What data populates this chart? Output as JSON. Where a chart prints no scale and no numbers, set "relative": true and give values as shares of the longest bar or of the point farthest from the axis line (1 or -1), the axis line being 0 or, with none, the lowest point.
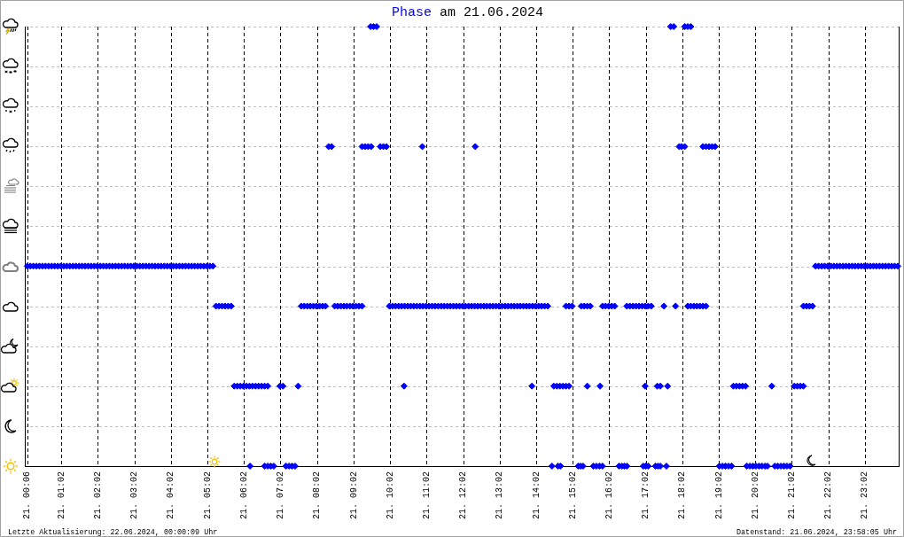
{
  "chart_data": {
    "type": "scatter",
    "title": "Phase am 21.06.2024",
    "color": "#0000ff",
    "marker": "diamond",
    "grid": true,
    "relative": true,
    "tick_labels": "x",
    "xlim": [
      "2024-06-21T00:02",
      "2024-06-21T23:59"
    ],
    "xticks": [
      {
        "value": "2024-06-21T00:06",
        "label": "21. 00:06"
      },
      {
        "value": "2024-06-21T01:02",
        "label": "21. 01:02"
      },
      {
        "value": "2024-06-21T02:02",
        "label": "21. 02:02"
      },
      {
        "value": "2024-06-21T03:02",
        "label": "21. 03:02"
      },
      {
        "value": "2024-06-21T04:02",
        "label": "21. 04:02"
      },
      {
        "value": "2024-06-21T05:02",
        "label": "21. 05:02"
      },
      {
        "value": "2024-06-21T06:02",
        "label": "21. 06:02"
      },
      {
        "value": "2024-06-21T07:02",
        "label": "21. 07:02"
      },
      {
        "value": "2024-06-21T08:02",
        "label": "21. 08:02"
      },
      {
        "value": "2024-06-21T09:02",
        "label": "21. 09:02"
      },
      {
        "value": "2024-06-21T10:02",
        "label": "21. 10:02"
      },
      {
        "value": "2024-06-21T11:02",
        "label": "21. 11:02"
      },
      {
        "value": "2024-06-21T12:02",
        "label": "21. 12:02"
      },
      {
        "value": "2024-06-21T13:02",
        "label": "21. 13:02"
      },
      {
        "value": "2024-06-21T14:02",
        "label": "21. 14:02"
      },
      {
        "value": "2024-06-21T15:02",
        "label": "21. 15:02"
      },
      {
        "value": "2024-06-21T16:02",
        "label": "21. 16:02"
      },
      {
        "value": "2024-06-21T17:02",
        "label": "21. 17:02"
      },
      {
        "value": "2024-06-21T18:02",
        "label": "21. 18:02"
      },
      {
        "value": "2024-06-21T19:02",
        "label": "21. 19:02"
      },
      {
        "value": "2024-06-21T20:02",
        "label": "21. 20:02"
      },
      {
        "value": "2024-06-21T21:02",
        "label": "21. 21:02"
      },
      {
        "value": "2024-06-21T22:02",
        "label": "21. 22:02"
      },
      {
        "value": "2024-06-21T23:02",
        "label": "21. 23:02"
      }
    ],
    "x": [
      "2024-06-21T00:06",
      "2024-06-21T00:11",
      "2024-06-21T00:16",
      "2024-06-21T00:21",
      "2024-06-21T00:26",
      "2024-06-21T00:31",
      "2024-06-21T00:36",
      "2024-06-21T00:41",
      "2024-06-21T00:46",
      "2024-06-21T00:51",
      "2024-06-21T00:56",
      "2024-06-21T01:01",
      "2024-06-21T01:06",
      "2024-06-21T01:11",
      "2024-06-21T01:16",
      "2024-06-21T01:21",
      "2024-06-21T01:26",
      "2024-06-21T01:31",
      "2024-06-21T01:36",
      "2024-06-21T01:41",
      "2024-06-21T01:46",
      "2024-06-21T01:51",
      "2024-06-21T01:56",
      "2024-06-21T02:01",
      "2024-06-21T02:06",
      "2024-06-21T02:11",
      "2024-06-21T02:16",
      "2024-06-21T02:21",
      "2024-06-21T02:26",
      "2024-06-21T02:31",
      "2024-06-21T02:36",
      "2024-06-21T02:41",
      "2024-06-21T02:46",
      "2024-06-21T02:51",
      "2024-06-21T02:56",
      "2024-06-21T03:01",
      "2024-06-21T03:06",
      "2024-06-21T03:11",
      "2024-06-21T03:16",
      "2024-06-21T03:21",
      "2024-06-21T03:26",
      "2024-06-21T03:31",
      "2024-06-21T03:36",
      "2024-06-21T03:41",
      "2024-06-21T03:46",
      "2024-06-21T03:51",
      "2024-06-21T03:56",
      "2024-06-21T04:01",
      "2024-06-21T04:06",
      "2024-06-21T04:11",
      "2024-06-21T04:16",
      "2024-06-21T04:21",
      "2024-06-21T04:26",
      "2024-06-21T04:31",
      "2024-06-21T04:36",
      "2024-06-21T04:41",
      "2024-06-21T04:46",
      "2024-06-21T04:51",
      "2024-06-21T04:56",
      "2024-06-21T05:01",
      "2024-06-21T05:06",
      "2024-06-21T05:11",
      "2024-06-21T21:41",
      "2024-06-21T21:46",
      "2024-06-21T21:51",
      "2024-06-21T21:56",
      "2024-06-21T22:01",
      "2024-06-21T22:06",
      "2024-06-21T22:11",
      "2024-06-21T22:16",
      "2024-06-21T22:21",
      "2024-06-21T22:26",
      "2024-06-21T22:31",
      "2024-06-21T22:36",
      "2024-06-21T22:41",
      "2024-06-21T22:46",
      "2024-06-21T22:51",
      "2024-06-21T22:56",
      "2024-06-21T23:01",
      "2024-06-21T23:06",
      "2024-06-21T23:11",
      "2024-06-21T23:16",
      "2024-06-21T23:21",
      "2024-06-21T23:26",
      "2024-06-21T23:31",
      "2024-06-21T23:36",
      "2024-06-21T23:41",
      "2024-06-21T23:46",
      "2024-06-21T23:51",
      "2024-06-21T23:56",
      "2024-06-21T05:16",
      "2024-06-21T05:21",
      "2024-06-21T05:26",
      "2024-06-21T05:31",
      "2024-06-21T05:36",
      "2024-06-21T05:41",
      "2024-06-21T07:36",
      "2024-06-21T07:41",
      "2024-06-21T07:46",
      "2024-06-21T07:51",
      "2024-06-21T07:56",
      "2024-06-21T08:01",
      "2024-06-21T08:06",
      "2024-06-21T08:11",
      "2024-06-21T08:16",
      "2024-06-21T08:31",
      "2024-06-21T08:36",
      "2024-06-21T08:41",
      "2024-06-21T08:46",
      "2024-06-21T08:51",
      "2024-06-21T08:56",
      "2024-06-21T09:01",
      "2024-06-21T09:06",
      "2024-06-21T09:11",
      "2024-06-21T09:16",
      "2024-06-21T10:01",
      "2024-06-21T10:06",
      "2024-06-21T10:11",
      "2024-06-21T10:16",
      "2024-06-21T10:21",
      "2024-06-21T10:26",
      "2024-06-21T10:31",
      "2024-06-21T10:36",
      "2024-06-21T10:41",
      "2024-06-21T10:46",
      "2024-06-21T10:51",
      "2024-06-21T10:56",
      "2024-06-21T11:01",
      "2024-06-21T11:06",
      "2024-06-21T11:11",
      "2024-06-21T11:16",
      "2024-06-21T11:21",
      "2024-06-21T11:26",
      "2024-06-21T11:31",
      "2024-06-21T11:36",
      "2024-06-21T11:41",
      "2024-06-21T11:46",
      "2024-06-21T11:51",
      "2024-06-21T11:56",
      "2024-06-21T12:01",
      "2024-06-21T12:06",
      "2024-06-21T12:11",
      "2024-06-21T12:16",
      "2024-06-21T12:21",
      "2024-06-21T12:26",
      "2024-06-21T12:31",
      "2024-06-21T12:36",
      "2024-06-21T12:41",
      "2024-06-21T12:46",
      "2024-06-21T12:51",
      "2024-06-21T12:56",
      "2024-06-21T13:01",
      "2024-06-21T13:06",
      "2024-06-21T13:11",
      "2024-06-21T13:16",
      "2024-06-21T13:21",
      "2024-06-21T13:26",
      "2024-06-21T13:31",
      "2024-06-21T13:36",
      "2024-06-21T13:41",
      "2024-06-21T13:46",
      "2024-06-21T13:51",
      "2024-06-21T13:56",
      "2024-06-21T14:01",
      "2024-06-21T14:06",
      "2024-06-21T14:11",
      "2024-06-21T14:16",
      "2024-06-21T14:21",
      "2024-06-21T14:51",
      "2024-06-21T14:56",
      "2024-06-21T15:01",
      "2024-06-21T15:16",
      "2024-06-21T15:21",
      "2024-06-21T15:26",
      "2024-06-21T15:31",
      "2024-06-21T15:51",
      "2024-06-21T15:56",
      "2024-06-21T16:01",
      "2024-06-21T16:06",
      "2024-06-21T16:11",
      "2024-06-21T16:31",
      "2024-06-21T16:36",
      "2024-06-21T16:41",
      "2024-06-21T16:46",
      "2024-06-21T16:51",
      "2024-06-21T16:56",
      "2024-06-21T17:01",
      "2024-06-21T17:06",
      "2024-06-21T17:11",
      "2024-06-21T17:32",
      "2024-06-21T17:51",
      "2024-06-21T18:11",
      "2024-06-21T18:16",
      "2024-06-21T18:21",
      "2024-06-21T18:26",
      "2024-06-21T18:31",
      "2024-06-21T18:36",
      "2024-06-21T18:41",
      "2024-06-21T21:21",
      "2024-06-21T21:26",
      "2024-06-21T21:31",
      "2024-06-21T21:36",
      "2024-06-21T05:46",
      "2024-06-21T05:51",
      "2024-06-21T05:56",
      "2024-06-21T06:01",
      "2024-06-21T06:06",
      "2024-06-21T06:11",
      "2024-06-21T06:16",
      "2024-06-21T06:21",
      "2024-06-21T06:26",
      "2024-06-21T06:31",
      "2024-06-21T06:36",
      "2024-06-21T06:41",
      "2024-06-21T07:01",
      "2024-06-21T07:06",
      "2024-06-21T07:31",
      "2024-06-21T10:25",
      "2024-06-21T13:55",
      "2024-06-21T14:31",
      "2024-06-21T14:36",
      "2024-06-21T14:41",
      "2024-06-21T14:46",
      "2024-06-21T14:51",
      "2024-06-21T14:56",
      "2024-06-21T15:26",
      "2024-06-21T15:47",
      "2024-06-21T17:01",
      "2024-06-21T17:21",
      "2024-06-21T17:26",
      "2024-06-21T17:38",
      "2024-06-21T19:26",
      "2024-06-21T19:31",
      "2024-06-21T19:36",
      "2024-06-21T19:41",
      "2024-06-21T19:46",
      "2024-06-21T20:29",
      "2024-06-21T21:06",
      "2024-06-21T21:11",
      "2024-06-21T21:16",
      "2024-06-21T21:21",
      "2024-06-21T06:12",
      "2024-06-21T06:36",
      "2024-06-21T06:41",
      "2024-06-21T06:46",
      "2024-06-21T06:51",
      "2024-06-21T07:11",
      "2024-06-21T07:16",
      "2024-06-21T07:21",
      "2024-06-21T07:26",
      "2024-06-21T14:28",
      "2024-06-21T14:38",
      "2024-06-21T14:42",
      "2024-06-21T15:11",
      "2024-06-21T15:15",
      "2024-06-21T15:19",
      "2024-06-21T15:36",
      "2024-06-21T15:41",
      "2024-06-21T15:46",
      "2024-06-21T15:51",
      "2024-06-21T16:18",
      "2024-06-21T16:23",
      "2024-06-21T16:27",
      "2024-06-21T16:31",
      "2024-06-21T16:58",
      "2024-06-21T17:02",
      "2024-06-21T17:06",
      "2024-06-21T17:18",
      "2024-06-21T17:22",
      "2024-06-21T17:26",
      "2024-06-21T17:36",
      "2024-06-21T19:03",
      "2024-06-21T19:08",
      "2024-06-21T19:13",
      "2024-06-21T19:18",
      "2024-06-21T19:23",
      "2024-06-21T19:48",
      "2024-06-21T19:53",
      "2024-06-21T19:58",
      "2024-06-21T20:03",
      "2024-06-21T20:08",
      "2024-06-21T20:13",
      "2024-06-21T20:18",
      "2024-06-21T20:22",
      "2024-06-21T20:34",
      "2024-06-21T20:39",
      "2024-06-21T20:44",
      "2024-06-21T20:49",
      "2024-06-21T20:54",
      "2024-06-21T20:59",
      "2024-06-21T08:21",
      "2024-06-21T08:26",
      "2024-06-21T09:16",
      "2024-06-21T09:21",
      "2024-06-21T09:26",
      "2024-06-21T09:31",
      "2024-06-21T09:46",
      "2024-06-21T09:51",
      "2024-06-21T09:56",
      "2024-06-21T10:55",
      "2024-06-21T12:22",
      "2024-06-21T17:57",
      "2024-06-21T18:01",
      "2024-06-21T18:06",
      "2024-06-21T18:36",
      "2024-06-21T18:41",
      "2024-06-21T18:46",
      "2024-06-21T18:51",
      "2024-06-21T18:56",
      "2024-06-21T09:30",
      "2024-06-21T09:35",
      "2024-06-21T09:40",
      "2024-06-21T17:43",
      "2024-06-21T17:48",
      "2024-06-21T18:06",
      "2024-06-21T18:11",
      "2024-06-21T18:16"
    ],
    "values": [
      0.455,
      0.455,
      0.455,
      0.455,
      0.455,
      0.455,
      0.455,
      0.455,
      0.455,
      0.455,
      0.455,
      0.455,
      0.455,
      0.455,
      0.455,
      0.455,
      0.455,
      0.455,
      0.455,
      0.455,
      0.455,
      0.455,
      0.455,
      0.455,
      0.455,
      0.455,
      0.455,
      0.455,
      0.455,
      0.455,
      0.455,
      0.455,
      0.455,
      0.455,
      0.455,
      0.455,
      0.455,
      0.455,
      0.455,
      0.455,
      0.455,
      0.455,
      0.455,
      0.455,
      0.455,
      0.455,
      0.455,
      0.455,
      0.455,
      0.455,
      0.455,
      0.455,
      0.455,
      0.455,
      0.455,
      0.455,
      0.455,
      0.455,
      0.455,
      0.455,
      0.455,
      0.455,
      0.455,
      0.455,
      0.455,
      0.455,
      0.455,
      0.455,
      0.455,
      0.455,
      0.455,
      0.455,
      0.455,
      0.455,
      0.455,
      0.455,
      0.455,
      0.455,
      0.455,
      0.455,
      0.455,
      0.455,
      0.455,
      0.455,
      0.455,
      0.455,
      0.455,
      0.455,
      0.455,
      0.455,
      0.364,
      0.364,
      0.364,
      0.364,
      0.364,
      0.364,
      0.364,
      0.364,
      0.364,
      0.364,
      0.364,
      0.364,
      0.364,
      0.364,
      0.364,
      0.364,
      0.364,
      0.364,
      0.364,
      0.364,
      0.364,
      0.364,
      0.364,
      0.364,
      0.364,
      0.364,
      0.364,
      0.364,
      0.364,
      0.364,
      0.364,
      0.364,
      0.364,
      0.364,
      0.364,
      0.364,
      0.364,
      0.364,
      0.364,
      0.364,
      0.364,
      0.364,
      0.364,
      0.364,
      0.364,
      0.364,
      0.364,
      0.364,
      0.364,
      0.364,
      0.364,
      0.364,
      0.364,
      0.364,
      0.364,
      0.364,
      0.364,
      0.364,
      0.364,
      0.364,
      0.364,
      0.364,
      0.364,
      0.364,
      0.364,
      0.364,
      0.364,
      0.364,
      0.364,
      0.364,
      0.364,
      0.364,
      0.364,
      0.364,
      0.364,
      0.364,
      0.364,
      0.364,
      0.364,
      0.364,
      0.364,
      0.364,
      0.364,
      0.364,
      0.364,
      0.364,
      0.364,
      0.364,
      0.364,
      0.364,
      0.364,
      0.364,
      0.364,
      0.364,
      0.364,
      0.364,
      0.364,
      0.364,
      0.364,
      0.364,
      0.364,
      0.364,
      0.364,
      0.364,
      0.364,
      0.364,
      0.364,
      0.364,
      0.364,
      0.364,
      0.364,
      0.364,
      0.182,
      0.182,
      0.182,
      0.182,
      0.182,
      0.182,
      0.182,
      0.182,
      0.182,
      0.182,
      0.182,
      0.182,
      0.182,
      0.182,
      0.182,
      0.182,
      0.182,
      0.182,
      0.182,
      0.182,
      0.182,
      0.182,
      0.182,
      0.182,
      0.182,
      0.182,
      0.182,
      0.182,
      0.182,
      0.182,
      0.182,
      0.182,
      0.182,
      0.182,
      0.182,
      0.182,
      0.182,
      0.182,
      0.182,
      0,
      0,
      0,
      0,
      0,
      0,
      0,
      0,
      0,
      0,
      0,
      0,
      0,
      0,
      0,
      0,
      0,
      0,
      0,
      0,
      0,
      0,
      0,
      0,
      0,
      0,
      0,
      0,
      0,
      0,
      0,
      0,
      0,
      0,
      0,
      0,
      0,
      0,
      0,
      0,
      0,
      0,
      0,
      0,
      0,
      0,
      0,
      0,
      0,
      0.727,
      0.727,
      0.727,
      0.727,
      0.727,
      0.727,
      0.727,
      0.727,
      0.727,
      0.727,
      0.727,
      0.727,
      0.727,
      0.727,
      0.727,
      0.727,
      0.727,
      0.727,
      0.727,
      1,
      1,
      1,
      1,
      1,
      1,
      1,
      1
    ],
    "annotations": [
      "Letzte Aktualisierung: 22.06.2024, 00:00:09 Uhr",
      "Datenstand: 21.06.2024, 23:58:05 Uhr"
    ]
  }
}
